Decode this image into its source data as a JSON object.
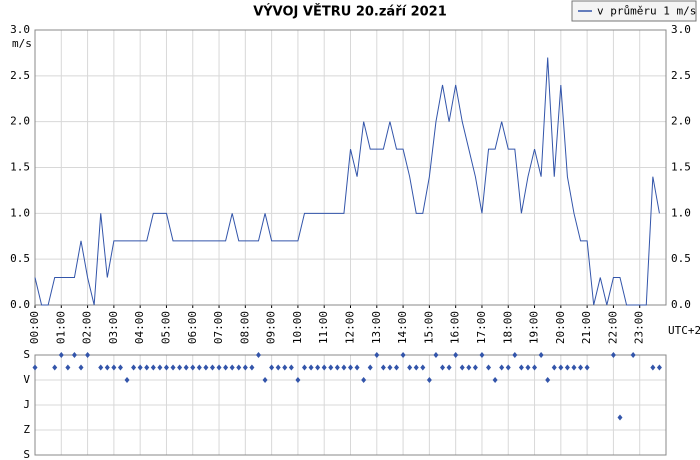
{
  "chart_data": [
    {
      "type": "line",
      "title": "VÝVOJ VĚTRU  20.září 2021",
      "y_label": "m/s",
      "x_label": "UTC+2",
      "x": [
        0,
        0.25,
        0.5,
        0.75,
        1,
        1.25,
        1.5,
        1.75,
        2,
        2.25,
        2.5,
        2.75,
        3,
        3.25,
        3.5,
        3.75,
        4,
        4.25,
        4.5,
        4.75,
        5,
        5.25,
        5.5,
        5.75,
        6,
        6.25,
        6.5,
        6.75,
        7,
        7.25,
        7.5,
        7.75,
        8,
        8.25,
        8.5,
        8.75,
        9,
        9.25,
        9.5,
        9.75,
        10,
        10.25,
        10.5,
        10.75,
        11,
        11.25,
        11.5,
        11.75,
        12,
        12.25,
        12.5,
        12.75,
        13,
        13.25,
        13.5,
        13.75,
        14,
        14.25,
        14.5,
        14.75,
        15,
        15.25,
        15.5,
        15.75,
        16,
        16.25,
        16.5,
        16.75,
        17,
        17.25,
        17.5,
        17.75,
        18,
        18.25,
        18.5,
        18.75,
        19,
        19.25,
        19.5,
        19.75,
        20,
        20.25,
        20.5,
        20.75,
        21,
        21.25,
        21.5,
        21.75,
        22,
        22.25,
        22.5,
        22.75,
        23,
        23.25,
        23.5,
        23.75
      ],
      "series": [
        {
          "name": "v průměru 1 m/s",
          "color": "#3355aa",
          "values": [
            0.3,
            0,
            0,
            0.3,
            0.3,
            0.3,
            0.3,
            0.7,
            0.3,
            0,
            1.0,
            0.3,
            0.7,
            0.7,
            0.7,
            0.7,
            0.7,
            0.7,
            1.0,
            1.0,
            1.0,
            0.7,
            0.7,
            0.7,
            0.7,
            0.7,
            0.7,
            0.7,
            0.7,
            0.7,
            1.0,
            0.7,
            0.7,
            0.7,
            0.7,
            1.0,
            0.7,
            0.7,
            0.7,
            0.7,
            0.7,
            1.0,
            1.0,
            1.0,
            1.0,
            1.0,
            1.0,
            1.0,
            1.7,
            1.4,
            2.0,
            1.7,
            1.7,
            1.7,
            2.0,
            1.7,
            1.7,
            1.4,
            1.0,
            1.0,
            1.4,
            2.0,
            2.4,
            2.0,
            2.4,
            2.0,
            1.7,
            1.4,
            1.0,
            1.7,
            1.7,
            2.0,
            1.7,
            1.7,
            1.0,
            1.4,
            1.7,
            1.4,
            2.7,
            1.4,
            2.4,
            1.4,
            1.0,
            0.7,
            0.7,
            0,
            0.3,
            0,
            0.3,
            0.3,
            0,
            0,
            0,
            0,
            1.4,
            1.0
          ]
        }
      ],
      "xlim": [
        0,
        24
      ],
      "xticks": [
        {
          "value": 0,
          "label": "00:00"
        },
        {
          "value": 1,
          "label": "01:00"
        },
        {
          "value": 2,
          "label": "02:00"
        },
        {
          "value": 3,
          "label": "03:00"
        },
        {
          "value": 4,
          "label": "04:00"
        },
        {
          "value": 5,
          "label": "05:00"
        },
        {
          "value": 6,
          "label": "06:00"
        },
        {
          "value": 7,
          "label": "07:00"
        },
        {
          "value": 8,
          "label": "08:00"
        },
        {
          "value": 9,
          "label": "09:00"
        },
        {
          "value": 10,
          "label": "10:00"
        },
        {
          "value": 11,
          "label": "11:00"
        },
        {
          "value": 12,
          "label": "12:00"
        },
        {
          "value": 13,
          "label": "13:00"
        },
        {
          "value": 14,
          "label": "14:00"
        },
        {
          "value": 15,
          "label": "15:00"
        },
        {
          "value": 16,
          "label": "16:00"
        },
        {
          "value": 17,
          "label": "17:00"
        },
        {
          "value": 18,
          "label": "18:00"
        },
        {
          "value": 19,
          "label": "19:00"
        },
        {
          "value": 20,
          "label": "20:00"
        },
        {
          "value": 21,
          "label": "21:00"
        },
        {
          "value": 22,
          "label": "22:00"
        },
        {
          "value": 23,
          "label": "23:00"
        }
      ],
      "ylim": [
        0,
        3
      ],
      "yticks": [
        {
          "value": 0,
          "label": "0.0"
        },
        0.5,
        {
          "value": 1,
          "label": "1.0"
        },
        1.5,
        {
          "value": 2,
          "label": "2.0"
        },
        2.5,
        {
          "value": 3,
          "label": "3.0"
        }
      ],
      "grid": true,
      "legend": "top-right"
    },
    {
      "type": "scatter",
      "color": "#3355aa",
      "x": [
        0,
        0.25,
        0.5,
        0.75,
        1,
        1.25,
        1.5,
        1.75,
        2,
        2.25,
        2.5,
        2.75,
        3,
        3.25,
        3.5,
        3.75,
        4,
        4.25,
        4.5,
        4.75,
        5,
        5.25,
        5.5,
        5.75,
        6,
        6.25,
        6.5,
        6.75,
        7,
        7.25,
        7.5,
        7.75,
        8,
        8.25,
        8.5,
        8.75,
        9,
        9.25,
        9.5,
        9.75,
        10,
        10.25,
        10.5,
        10.75,
        11,
        11.25,
        11.5,
        11.75,
        12,
        12.25,
        12.5,
        12.75,
        13,
        13.25,
        13.5,
        13.75,
        14,
        14.25,
        14.5,
        14.75,
        15,
        15.25,
        15.5,
        15.75,
        16,
        16.25,
        16.5,
        16.75,
        17,
        17.25,
        17.5,
        17.75,
        18,
        18.25,
        18.5,
        18.75,
        19,
        19.25,
        19.5,
        19.75,
        20,
        20.25,
        20.5,
        20.75,
        21,
        21.25,
        21.5,
        21.75,
        22,
        22.25,
        22.5,
        22.75,
        23,
        23.25,
        23.5,
        23.75
      ],
      "values": [
        45,
        null,
        null,
        45,
        0,
        45,
        0,
        45,
        0,
        null,
        45,
        45,
        45,
        45,
        90,
        45,
        45,
        45,
        45,
        45,
        45,
        45,
        45,
        45,
        45,
        45,
        45,
        45,
        45,
        45,
        45,
        45,
        45,
        45,
        0,
        90,
        45,
        45,
        45,
        45,
        90,
        45,
        45,
        45,
        45,
        45,
        45,
        45,
        45,
        45,
        90,
        45,
        0,
        45,
        45,
        45,
        0,
        45,
        45,
        45,
        90,
        0,
        45,
        45,
        0,
        45,
        45,
        45,
        0,
        45,
        90,
        45,
        45,
        0,
        45,
        45,
        45,
        0,
        90,
        45,
        45,
        45,
        45,
        45,
        45,
        null,
        null,
        null,
        0,
        225,
        null,
        0,
        null,
        null,
        45,
        45
      ],
      "xlim": [
        0,
        24
      ],
      "ylim": [
        0,
        360
      ],
      "yticks": [
        {
          "value": 0,
          "label": "S"
        },
        {
          "value": 90,
          "label": "V"
        },
        {
          "value": 180,
          "label": "J"
        },
        {
          "value": 270,
          "label": "Z"
        },
        {
          "value": 360,
          "label": "S"
        }
      ],
      "grid": true
    }
  ]
}
